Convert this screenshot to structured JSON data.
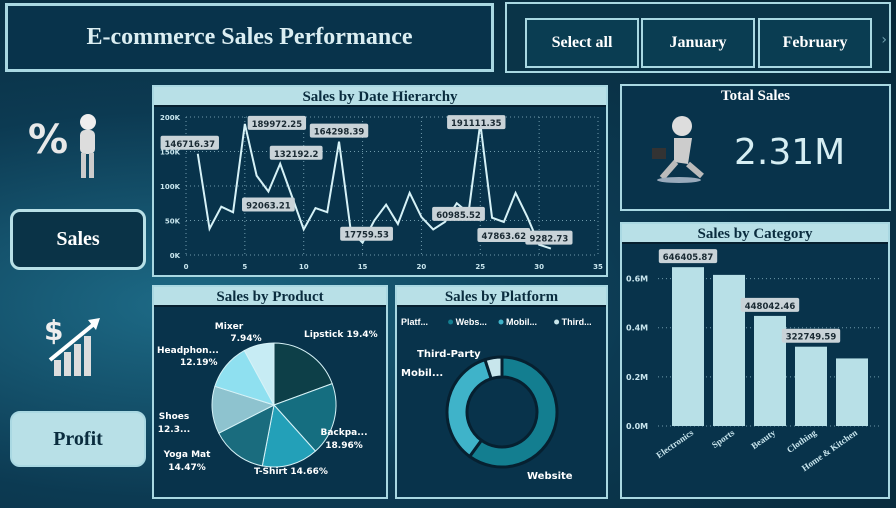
{
  "header": {
    "title": "E-commerce Sales Performance"
  },
  "slicer": {
    "items": [
      "Select all",
      "January",
      "February"
    ],
    "next_icon": "chevron-right-icon"
  },
  "nav": {
    "sales_label": "Sales",
    "profit_label": "Profit",
    "icons": [
      "percent-figure-icon",
      "dollar-growth-icon"
    ]
  },
  "kpi": {
    "title": "Total Sales",
    "value": "2.31M",
    "icon": "running-figure-icon"
  },
  "colors": {
    "bg": "#0c3a52",
    "panel": "#08334b",
    "header": "#b8e0e7",
    "line": "#d6f2f7"
  },
  "chart_data": [
    {
      "type": "line",
      "title": "Sales by Date Hierarchy",
      "x": [
        1,
        2,
        3,
        4,
        5,
        6,
        7,
        8,
        9,
        10,
        11,
        12,
        13,
        14,
        15,
        16,
        17,
        18,
        19,
        20,
        21,
        22,
        23,
        24,
        25,
        26,
        27,
        28,
        29,
        30,
        31
      ],
      "values": [
        146716.37,
        38000,
        70000,
        62000,
        189972.25,
        115000,
        92063.21,
        132192.2,
        85000,
        37000,
        68000,
        62000,
        164298.39,
        35000,
        17759.53,
        50000,
        73000,
        45000,
        90000,
        55000,
        37000,
        48000,
        75000,
        60985.52,
        191111.35,
        54000,
        47863.62,
        90000,
        55000,
        15000,
        9282.73
      ],
      "labeled": {
        "1": "146716.37",
        "5": "189972.25",
        "7": "92063.21",
        "8": "132192.2",
        "13": "164298.39",
        "15": "17759.53",
        "24": "60985.52",
        "25": "191111.35",
        "27": "47863.62",
        "31": "9282.73"
      },
      "xlim": [
        0,
        35
      ],
      "xticks": [
        "0",
        "5",
        "10",
        "15",
        "20",
        "25",
        "30",
        "35"
      ],
      "ylim": [
        0,
        200000
      ],
      "yticks": [
        "0K",
        "50K",
        "100K",
        "150K",
        "200K"
      ],
      "grid": true
    },
    {
      "type": "pie",
      "title": "Sales by Product",
      "slices": [
        {
          "name": "Lipstick",
          "value": 19.4,
          "label": "Lipstick 19.4%",
          "color": "#0d3f48"
        },
        {
          "name": "Backpack",
          "value": 18.96,
          "label": "Backpa... 18.96%",
          "color": "#156e80"
        },
        {
          "name": "T-Shirt",
          "value": 14.66,
          "label": "T-Shirt 14.66%",
          "color": "#23a0b8"
        },
        {
          "name": "Yoga Mat",
          "value": 14.47,
          "label": "Yoga Mat 14.47%",
          "color": "#1a6c7e"
        },
        {
          "name": "Shoes",
          "value": 12.38,
          "label": "Shoes 12.3...",
          "color": "#8ec3cf"
        },
        {
          "name": "Headphones",
          "value": 12.19,
          "label": "Headphon... 12.19%",
          "color": "#8fe0f0"
        },
        {
          "name": "Mixer",
          "value": 7.94,
          "label": "Mixer 7.94%",
          "color": "#c7ecf4"
        }
      ]
    },
    {
      "type": "pie",
      "title": "Sales by Platform",
      "legend": {
        "title": "Platf...",
        "items": [
          "Webs...",
          "Mobil...",
          "Third..."
        ]
      },
      "slices": [
        {
          "name": "Website",
          "value": 60,
          "label": "Website",
          "color": "#137e90"
        },
        {
          "name": "Mobile",
          "value": 35,
          "label": "Mobil...",
          "color": "#3fb3c9"
        },
        {
          "name": "Third-Party",
          "value": 5,
          "label": "Third-Party",
          "color": "#c8e6ec"
        }
      ]
    },
    {
      "type": "bar",
      "title": "Sales by Category",
      "categories": [
        "Electronics",
        "Sports",
        "Beauty",
        "Clothing",
        "Home & Kitchen"
      ],
      "values": [
        646405.87,
        615000,
        448042.46,
        322749.59,
        275000
      ],
      "data_labels": [
        "646405.87",
        "",
        "448042.46",
        "322749.59",
        ""
      ],
      "ylim": [
        0,
        700000
      ],
      "yticks": [
        "0.0M",
        "0.2M",
        "0.4M",
        "0.6M"
      ],
      "grid": true
    }
  ]
}
